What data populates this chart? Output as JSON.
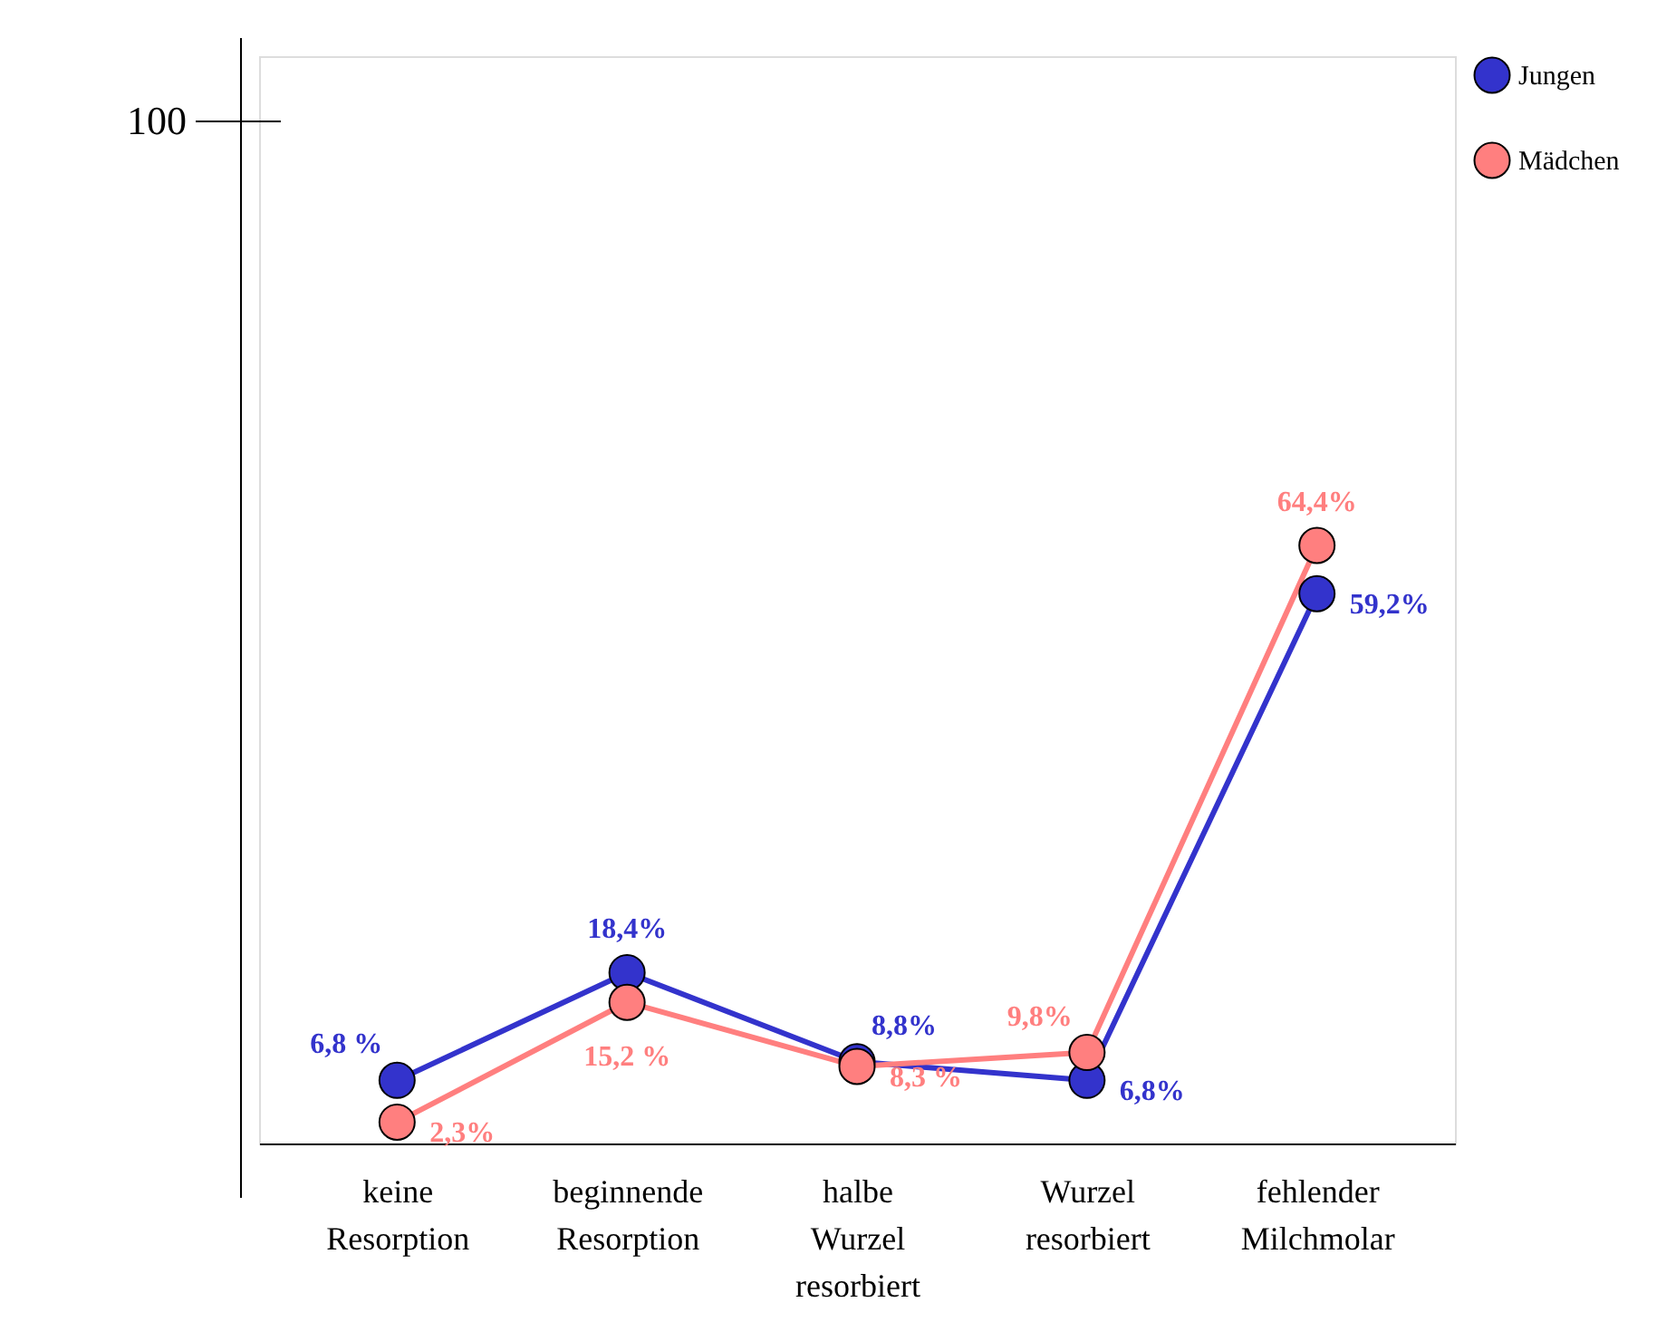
{
  "chart_data": {
    "type": "line",
    "categories": [
      "keine Resorption",
      "beginnende Resorption",
      "halbe Wurzel resorbiert",
      "Wurzel resorbiert",
      "fehlender Milchmolar"
    ],
    "series": [
      {
        "name": "Jungen",
        "color": "#3333cc",
        "values": [
          6.8,
          18.4,
          8.8,
          6.8,
          59.2
        ],
        "value_labels": [
          "6,8 %",
          "18,4%",
          "8,8%",
          "6,8%",
          "59,2%"
        ]
      },
      {
        "name": "Mädchen",
        "color": "#ff7f7f",
        "values": [
          2.3,
          15.2,
          8.3,
          9.8,
          64.4
        ],
        "value_labels": [
          "2,3%",
          "15,2 %",
          "8,3 %",
          "9,8%",
          "64,4%"
        ]
      }
    ],
    "annotations": [
      "100"
    ],
    "grid": false,
    "legend": "right",
    "marker": "circle",
    "line_style": "solid"
  }
}
